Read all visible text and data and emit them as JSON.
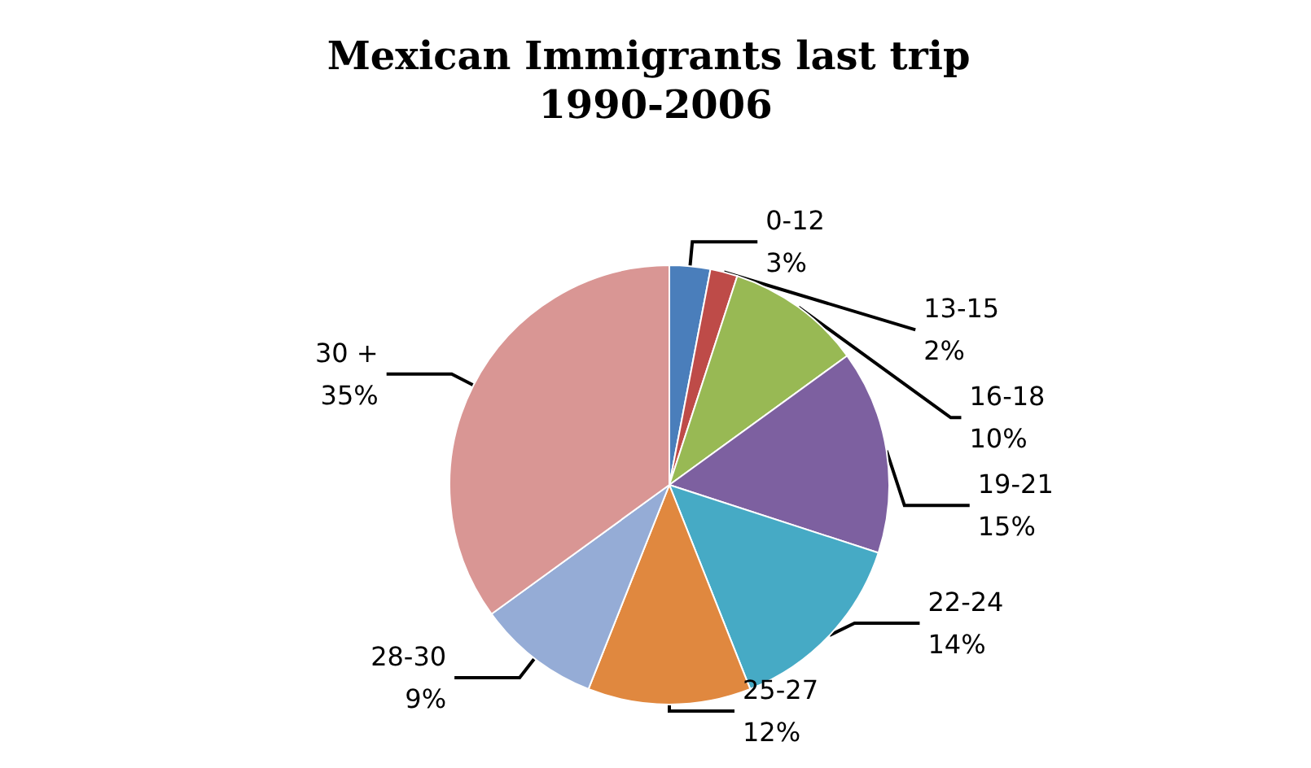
{
  "chart_data": {
    "type": "pie",
    "title": "Mexican Immigrants last trip 1990-2006",
    "categories": [
      "0-12",
      "13-15",
      "16-18",
      "19-21",
      "22-24",
      "25-27",
      "28-30",
      "30 +"
    ],
    "values": [
      3,
      2,
      10,
      15,
      14,
      12,
      9,
      35
    ],
    "colors": [
      "#4a7ebb",
      "#be4b48",
      "#98b954",
      "#7d60a0",
      "#46aac5",
      "#e0883f",
      "#95acd6",
      "#d99694"
    ],
    "value_labels": [
      "3%",
      "2%",
      "10%",
      "15%",
      "14%",
      "12%",
      "9%",
      "35%"
    ],
    "legend": false
  }
}
